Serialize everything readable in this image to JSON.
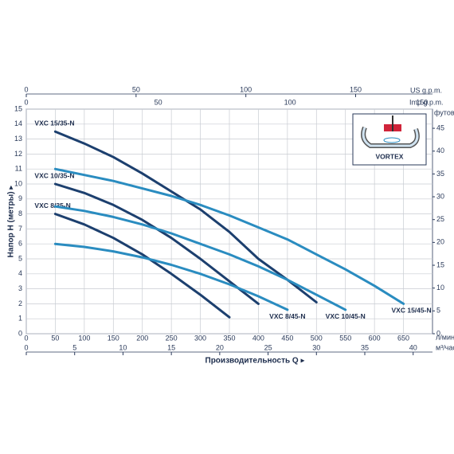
{
  "chart_data": {
    "type": "line",
    "y_label": "Напор H (метры) ▸",
    "x_label": "Производительность Q ▸",
    "x_unit": "л/мин",
    "m3h_unit": "м³/час",
    "us_gpm_unit": "US g.p.m.",
    "imp_gpm_unit": "Imp g.p.m.",
    "feet_unit": "футов",
    "inset_label": "VORTEX",
    "xlim": [
      0,
      700
    ],
    "xticks": [
      0,
      50,
      100,
      150,
      200,
      250,
      300,
      350,
      400,
      450,
      500,
      550,
      600,
      650
    ],
    "ylim": [
      0,
      15
    ],
    "yticks": [
      0,
      1,
      2,
      3,
      4,
      5,
      6,
      7,
      8,
      9,
      10,
      11,
      12,
      13,
      14,
      15
    ],
    "m3h_lim": [
      0,
      42
    ],
    "m3h_ticks": [
      0,
      5,
      10,
      15,
      20,
      25,
      30,
      35,
      40
    ],
    "us_gpm_lim": [
      0,
      185
    ],
    "us_gpm_ticks": [
      0,
      50,
      100,
      150
    ],
    "imp_gpm_lim": [
      0,
      154
    ],
    "imp_gpm_ticks": [
      0,
      50,
      100,
      150
    ],
    "feet_lim": [
      0,
      49.2
    ],
    "feet_ticks": [
      0,
      5,
      10,
      15,
      20,
      25,
      30,
      35,
      40,
      45
    ],
    "grid": true,
    "series": [
      {
        "name": "VXC 15/35-N",
        "color": "#1c3f6e",
        "x": [
          50,
          100,
          150,
          200,
          250,
          300,
          350,
          400,
          450,
          500
        ],
        "values": [
          13.5,
          12.7,
          11.8,
          10.7,
          9.5,
          8.3,
          6.8,
          5.0,
          3.6,
          2.1
        ]
      },
      {
        "name": "VXC 10/35-N",
        "color": "#1c3f6e",
        "x": [
          50,
          100,
          150,
          200,
          250,
          300,
          350,
          400
        ],
        "values": [
          10,
          9.4,
          8.6,
          7.6,
          6.4,
          5.0,
          3.5,
          2.0
        ]
      },
      {
        "name": "VXC 8/35-N",
        "color": "#1c3f6e",
        "x": [
          50,
          100,
          150,
          200,
          250,
          300,
          350
        ],
        "values": [
          8,
          7.3,
          6.4,
          5.3,
          4.0,
          2.6,
          1.1
        ]
      },
      {
        "name": "VXC 15/45-N",
        "color": "#2a8cc0",
        "x": [
          50,
          100,
          150,
          200,
          250,
          300,
          350,
          400,
          450,
          500,
          550,
          600,
          650
        ],
        "values": [
          11,
          10.6,
          10.2,
          9.7,
          9.2,
          8.6,
          7.9,
          7.1,
          6.3,
          5.3,
          4.3,
          3.2,
          2.0
        ]
      },
      {
        "name": "VXC 10/45-N",
        "color": "#2a8cc0",
        "x": [
          50,
          100,
          150,
          200,
          250,
          300,
          350,
          400,
          450,
          500,
          550
        ],
        "values": [
          8.5,
          8.2,
          7.8,
          7.3,
          6.7,
          6.0,
          5.3,
          4.5,
          3.6,
          2.6,
          1.6
        ]
      },
      {
        "name": "VXC 8/45-N",
        "color": "#2a8cc0",
        "x": [
          50,
          100,
          150,
          200,
          250,
          300,
          350,
          400,
          450
        ],
        "values": [
          6,
          5.8,
          5.5,
          5.1,
          4.6,
          4.0,
          3.3,
          2.5,
          1.6
        ]
      }
    ]
  }
}
